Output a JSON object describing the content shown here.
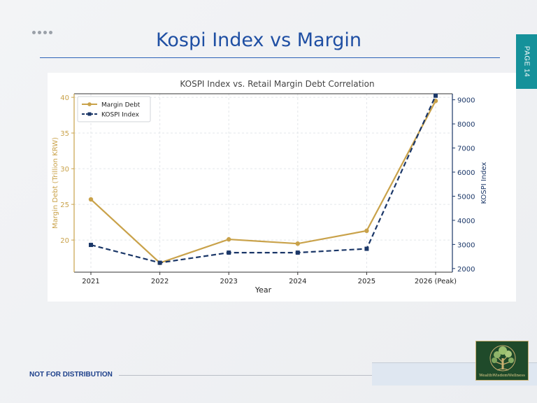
{
  "slide": {
    "title": "Kospi Index vs Margin",
    "page_label": "PAGE 14",
    "footer_label": "NOT FOR DISTRIBUTION",
    "logo_text": "WealthWisdomWellness"
  },
  "colors": {
    "title": "#1f4fa3",
    "accent_tab": "#15919a",
    "margin_series": "#c9a24a",
    "kospi_series": "#1b3768"
  },
  "chart_data": {
    "type": "line",
    "title": "KOSPI Index vs. Retail Margin Debt Correlation",
    "xlabel": "Year",
    "categories": [
      "2021",
      "2022",
      "2023",
      "2024",
      "2025",
      "2026 (Peak)"
    ],
    "y_left": {
      "label": "Margin Debt (Trillion KRW)",
      "range": [
        15.5,
        40.5
      ],
      "ticks": [
        20,
        25,
        30,
        35,
        40
      ]
    },
    "y_right": {
      "label": "KOSPI Index",
      "range": [
        1850,
        9250
      ],
      "ticks": [
        2000,
        3000,
        4000,
        5000,
        6000,
        7000,
        8000,
        9000
      ]
    },
    "series": [
      {
        "name": "Margin Debt",
        "axis": "left",
        "style": "solid",
        "marker": "circle",
        "color": "#c9a24a",
        "values": [
          25.7,
          16.8,
          20.1,
          19.5,
          21.3,
          39.5
        ]
      },
      {
        "name": "KOSPI Index",
        "axis": "right",
        "style": "dashed",
        "marker": "square",
        "color": "#1b3768",
        "values": [
          2980,
          2240,
          2660,
          2660,
          2820,
          9170
        ]
      }
    ],
    "legend_position": "top-left",
    "grid": true
  }
}
